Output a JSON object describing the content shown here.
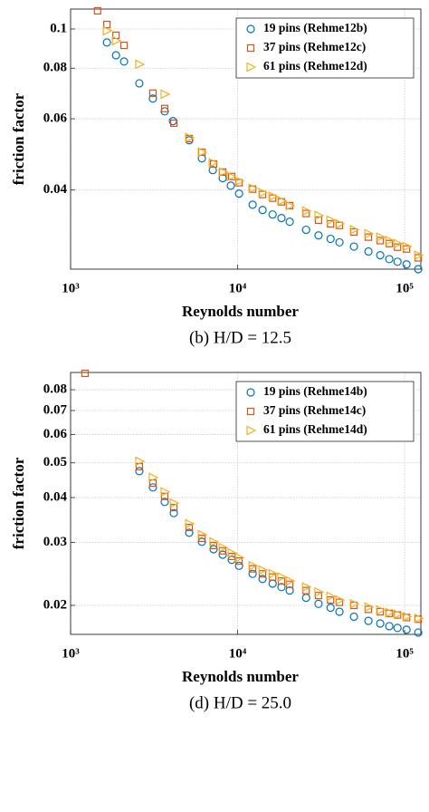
{
  "chart_data": [
    {
      "type": "scatter",
      "xscale": "log",
      "yscale": "log",
      "grid": true,
      "legend": "northeast",
      "x_label": "Reynolds number",
      "y_label": "friction factor",
      "caption": "(b) H/D = 12.5",
      "xlim": [
        1000,
        125000
      ],
      "ylim": [
        0.0255,
        0.112
      ],
      "xticks": [
        {
          "value": 1000,
          "label": "10³"
        },
        {
          "value": 10000,
          "label": "10⁴"
        },
        {
          "value": 100000,
          "label": "10⁵"
        }
      ],
      "yticks": [
        0.04,
        0.06,
        0.08,
        {
          "value": 0.1,
          "label": "0.1"
        }
      ],
      "series": [
        {
          "name": "19 pins (Rehme12b)",
          "color": "#0072BD",
          "marker": "circle",
          "x": [
            1650,
            1870,
            2090,
            2580,
            3110,
            3660,
            4100,
            5130,
            6110,
            7100,
            8140,
            9100,
            10200,
            12300,
            14100,
            16200,
            18300,
            20500,
            25700,
            30500,
            36000,
            40700,
            49700,
            60700,
            71400,
            80900,
            90600,
            102600,
            120600
          ],
          "values": [
            0.0926,
            0.0861,
            0.0831,
            0.0734,
            0.0673,
            0.0626,
            0.0592,
            0.0531,
            0.0479,
            0.0448,
            0.0428,
            0.041,
            0.0392,
            0.0368,
            0.0357,
            0.0348,
            0.0341,
            0.0334,
            0.0319,
            0.0309,
            0.0303,
            0.0297,
            0.029,
            0.0282,
            0.0276,
            0.027,
            0.0266,
            0.0262,
            0.0255
          ]
        },
        {
          "name": "37 pins (Rehme12c)",
          "color": "#D95319",
          "marker": "square",
          "x": [
            1450,
            1650,
            1870,
            2090,
            3110,
            3660,
            4150,
            5130,
            6110,
            7180,
            8140,
            9220,
            10200,
            12300,
            14100,
            16200,
            18300,
            20500,
            25700,
            30500,
            36000,
            40700,
            49700,
            60700,
            71400,
            80900,
            90600,
            102600,
            120600
          ],
          "values": [
            0.1109,
            0.1026,
            0.0965,
            0.0911,
            0.0694,
            0.0636,
            0.0585,
            0.0536,
            0.0496,
            0.0464,
            0.0443,
            0.0432,
            0.0417,
            0.0402,
            0.039,
            0.0382,
            0.0374,
            0.0366,
            0.035,
            0.0337,
            0.033,
            0.0327,
            0.0315,
            0.0306,
            0.03,
            0.0295,
            0.0289,
            0.0286,
            0.0272
          ]
        },
        {
          "name": "61 pins (Rehme12d)",
          "color": "#EDB120",
          "marker": "triangle-right",
          "x": [
            1650,
            1870,
            2580,
            3660,
            5130,
            6110,
            7100,
            8140,
            9100,
            10200,
            12300,
            14100,
            16200,
            18300,
            20500,
            25700,
            30500,
            36000,
            40700,
            49700,
            60700,
            71400,
            80900,
            90600,
            102600,
            120600
          ],
          "values": [
            0.099,
            0.0935,
            0.0818,
            0.069,
            0.0539,
            0.0496,
            0.0467,
            0.0443,
            0.0432,
            0.0421,
            0.0404,
            0.0394,
            0.0386,
            0.0376,
            0.0366,
            0.0355,
            0.0346,
            0.0337,
            0.033,
            0.0319,
            0.0312,
            0.0306,
            0.03,
            0.0295,
            0.029,
            0.0276
          ]
        }
      ]
    },
    {
      "type": "scatter",
      "xscale": "log",
      "yscale": "log",
      "grid": true,
      "legend": "northeast",
      "x_label": "Reynolds number",
      "y_label": "friction factor",
      "caption": "(d) H/D = 25.0",
      "xlim": [
        1000,
        125000
      ],
      "ylim": [
        0.0166,
        0.0894
      ],
      "xticks": [
        {
          "value": 1000,
          "label": "10³"
        },
        {
          "value": 10000,
          "label": "10⁴"
        },
        {
          "value": 100000,
          "label": "10⁵"
        }
      ],
      "yticks": [
        0.02,
        0.03,
        0.04,
        0.05,
        0.06,
        0.07,
        0.08
      ],
      "series": [
        {
          "name": "19 pins (Rehme14b)",
          "color": "#0072BD",
          "marker": "circle",
          "x": [
            2580,
            3110,
            3660,
            4150,
            5130,
            6110,
            7180,
            8140,
            9220,
            10200,
            12300,
            14100,
            16200,
            18300,
            20500,
            25700,
            30500,
            36000,
            40700,
            49700,
            60700,
            71400,
            80900,
            90600,
            102600,
            120600
          ],
          "values": [
            0.0474,
            0.0427,
            0.0389,
            0.0362,
            0.0319,
            0.0301,
            0.0287,
            0.0277,
            0.0268,
            0.0258,
            0.0245,
            0.0237,
            0.023,
            0.0225,
            0.022,
            0.021,
            0.0202,
            0.0197,
            0.0192,
            0.0186,
            0.0181,
            0.0178,
            0.0175,
            0.0173,
            0.0171,
            0.0168
          ]
        },
        {
          "name": "37 pins (Rehme14c)",
          "color": "#D95319",
          "marker": "square",
          "x": [
            1220,
            2580,
            3110,
            3660,
            4150,
            5130,
            6110,
            7180,
            8140,
            9220,
            10200,
            12300,
            14100,
            16200,
            18300,
            20500,
            25700,
            30500,
            36000,
            40700,
            49700,
            60700,
            71400,
            80900,
            90600,
            102600,
            120600
          ],
          "values": [
            0.0889,
            0.0488,
            0.0439,
            0.0403,
            0.0375,
            0.033,
            0.0308,
            0.0294,
            0.0284,
            0.0274,
            0.0266,
            0.0253,
            0.0245,
            0.024,
            0.0234,
            0.0229,
            0.022,
            0.0213,
            0.0207,
            0.0204,
            0.02,
            0.0195,
            0.0192,
            0.019,
            0.0188,
            0.0185,
            0.0183
          ]
        },
        {
          "name": "61 pins (Rehme14d)",
          "color": "#EDB120",
          "marker": "triangle-right",
          "x": [
            2580,
            3110,
            3660,
            4150,
            5130,
            6110,
            7180,
            8140,
            9220,
            10200,
            12300,
            14100,
            16200,
            18300,
            20500,
            25700,
            30500,
            36000,
            40700,
            49700,
            60700,
            71400,
            80900,
            90600,
            102600,
            120600
          ],
          "values": [
            0.0505,
            0.0455,
            0.0415,
            0.0386,
            0.0338,
            0.0315,
            0.0301,
            0.029,
            0.028,
            0.0272,
            0.0258,
            0.0251,
            0.0245,
            0.024,
            0.0234,
            0.0225,
            0.0218,
            0.0212,
            0.0207,
            0.0202,
            0.0198,
            0.0194,
            0.0191,
            0.0189,
            0.0186,
            0.0184
          ]
        }
      ]
    }
  ]
}
